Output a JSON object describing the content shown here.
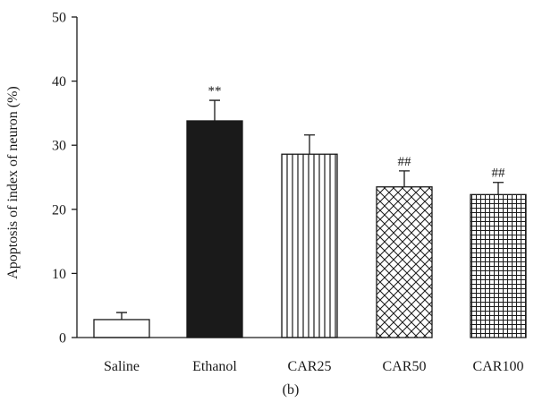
{
  "chart_data": {
    "type": "bar",
    "categories": [
      "Saline",
      "Ethanol",
      "CAR25",
      "CAR50",
      "CAR100"
    ],
    "values": [
      2.8,
      33.8,
      28.6,
      23.5,
      22.3
    ],
    "errors": [
      1.1,
      3.2,
      3.0,
      2.5,
      1.9
    ],
    "annotations": [
      "",
      "**",
      "",
      "##",
      "##"
    ],
    "fills": [
      "none",
      "solid",
      "vertical-lines",
      "crosshatch",
      "grid"
    ],
    "ylabel": "Apoptosis of index of neuron (%)",
    "xlabel": "",
    "ylim": [
      0,
      50
    ],
    "yticks": [
      0,
      10,
      20,
      30,
      40,
      50
    ],
    "panel_label": "(b)",
    "grid": false,
    "colors": {
      "axis": "#1a1a1a",
      "solid": "#1a1a1a",
      "background": "#ffffff"
    }
  }
}
